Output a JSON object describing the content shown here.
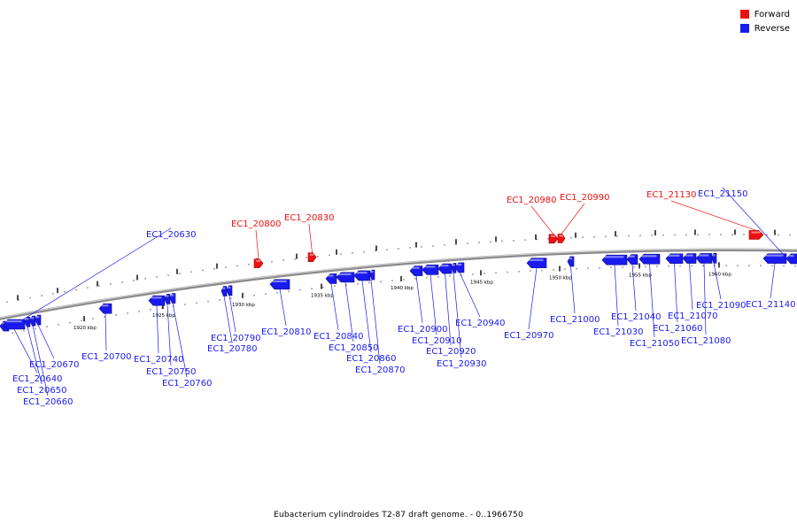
{
  "colors": {
    "forward": "#ee1111",
    "reverse": "#1a1aee",
    "backbone": "#8c8c8c",
    "tick": "#000000"
  },
  "legend": [
    {
      "label": "Forward",
      "color": "#ee1111"
    },
    {
      "label": "Reverse",
      "color": "#1a1aee"
    }
  ],
  "caption": "Eubacterium cylindroides T2-87 draft genome. - 0..1966750",
  "kbp_labels": [
    "1920 kbp",
    "1925 kbp",
    "1930 kbp",
    "1935 kbp",
    "1940 kbp",
    "1945 kbp",
    "1950 kbp",
    "1955 kbp",
    "1960 kbp"
  ],
  "genes": [
    {
      "label": "EC1_20630",
      "strand": "reverse"
    },
    {
      "label": "EC1_20640",
      "strand": "reverse"
    },
    {
      "label": "EC1_20650",
      "strand": "reverse"
    },
    {
      "label": "EC1_20660",
      "strand": "reverse"
    },
    {
      "label": "EC1_20670",
      "strand": "reverse"
    },
    {
      "label": "EC1_20700",
      "strand": "reverse"
    },
    {
      "label": "EC1_20740",
      "strand": "reverse"
    },
    {
      "label": "EC1_20750",
      "strand": "reverse"
    },
    {
      "label": "EC1_20760",
      "strand": "reverse"
    },
    {
      "label": "EC1_20780",
      "strand": "reverse"
    },
    {
      "label": "EC1_20790",
      "strand": "reverse"
    },
    {
      "label": "EC1_20800",
      "strand": "forward"
    },
    {
      "label": "EC1_20810",
      "strand": "reverse"
    },
    {
      "label": "EC1_20830",
      "strand": "forward"
    },
    {
      "label": "EC1_20840",
      "strand": "reverse"
    },
    {
      "label": "EC1_20850",
      "strand": "reverse"
    },
    {
      "label": "EC1_20860",
      "strand": "reverse"
    },
    {
      "label": "EC1_20870",
      "strand": "reverse"
    },
    {
      "label": "EC1_20900",
      "strand": "reverse"
    },
    {
      "label": "EC1_20910",
      "strand": "reverse"
    },
    {
      "label": "EC1_20920",
      "strand": "reverse"
    },
    {
      "label": "EC1_20930",
      "strand": "reverse"
    },
    {
      "label": "EC1_20940",
      "strand": "reverse"
    },
    {
      "label": "EC1_20970",
      "strand": "reverse"
    },
    {
      "label": "EC1_20980",
      "strand": "forward"
    },
    {
      "label": "EC1_20990",
      "strand": "forward"
    },
    {
      "label": "EC1_21000",
      "strand": "reverse"
    },
    {
      "label": "EC1_21030",
      "strand": "reverse"
    },
    {
      "label": "EC1_21040",
      "strand": "reverse"
    },
    {
      "label": "EC1_21050",
      "strand": "reverse"
    },
    {
      "label": "EC1_21060",
      "strand": "reverse"
    },
    {
      "label": "EC1_21070",
      "strand": "reverse"
    },
    {
      "label": "EC1_21080",
      "strand": "reverse"
    },
    {
      "label": "EC1_21090",
      "strand": "reverse"
    },
    {
      "label": "EC1_21130",
      "strand": "forward"
    },
    {
      "label": "EC1_21140",
      "strand": "reverse"
    },
    {
      "label": "EC1_21150",
      "strand": "reverse"
    }
  ]
}
